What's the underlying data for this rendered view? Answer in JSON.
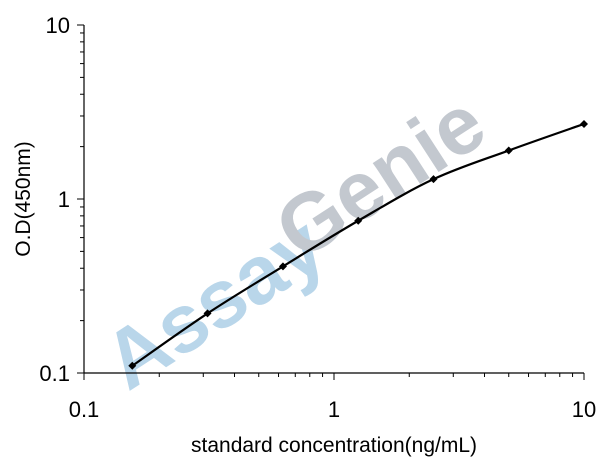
{
  "watermark": {
    "part1": "Assay",
    "part2": "Genie",
    "color1": "#b9d6ea",
    "color2": "#c3c8cf"
  },
  "chart_data": {
    "type": "line",
    "xlabel": "standard concentration(ng/mL)",
    "ylabel": "O.D(450nm)",
    "xscale": "log",
    "yscale": "log",
    "xlim": [
      0.1,
      10
    ],
    "ylim": [
      0.1,
      10
    ],
    "xticks": [
      {
        "value": 0.1,
        "label": "0.1"
      },
      {
        "value": 1,
        "label": "1"
      },
      {
        "value": 10,
        "label": "10"
      }
    ],
    "yticks": [
      {
        "value": 0.1,
        "label": "0.1"
      },
      {
        "value": 1,
        "label": "1"
      },
      {
        "value": 10,
        "label": "10"
      }
    ],
    "grid": false,
    "series": [
      {
        "color": "#000000",
        "marker": "diamond",
        "x": [
          0.156,
          0.312,
          0.625,
          1.25,
          2.5,
          5,
          10
        ],
        "y": [
          0.11,
          0.22,
          0.41,
          0.75,
          1.3,
          1.9,
          2.7
        ]
      }
    ]
  }
}
